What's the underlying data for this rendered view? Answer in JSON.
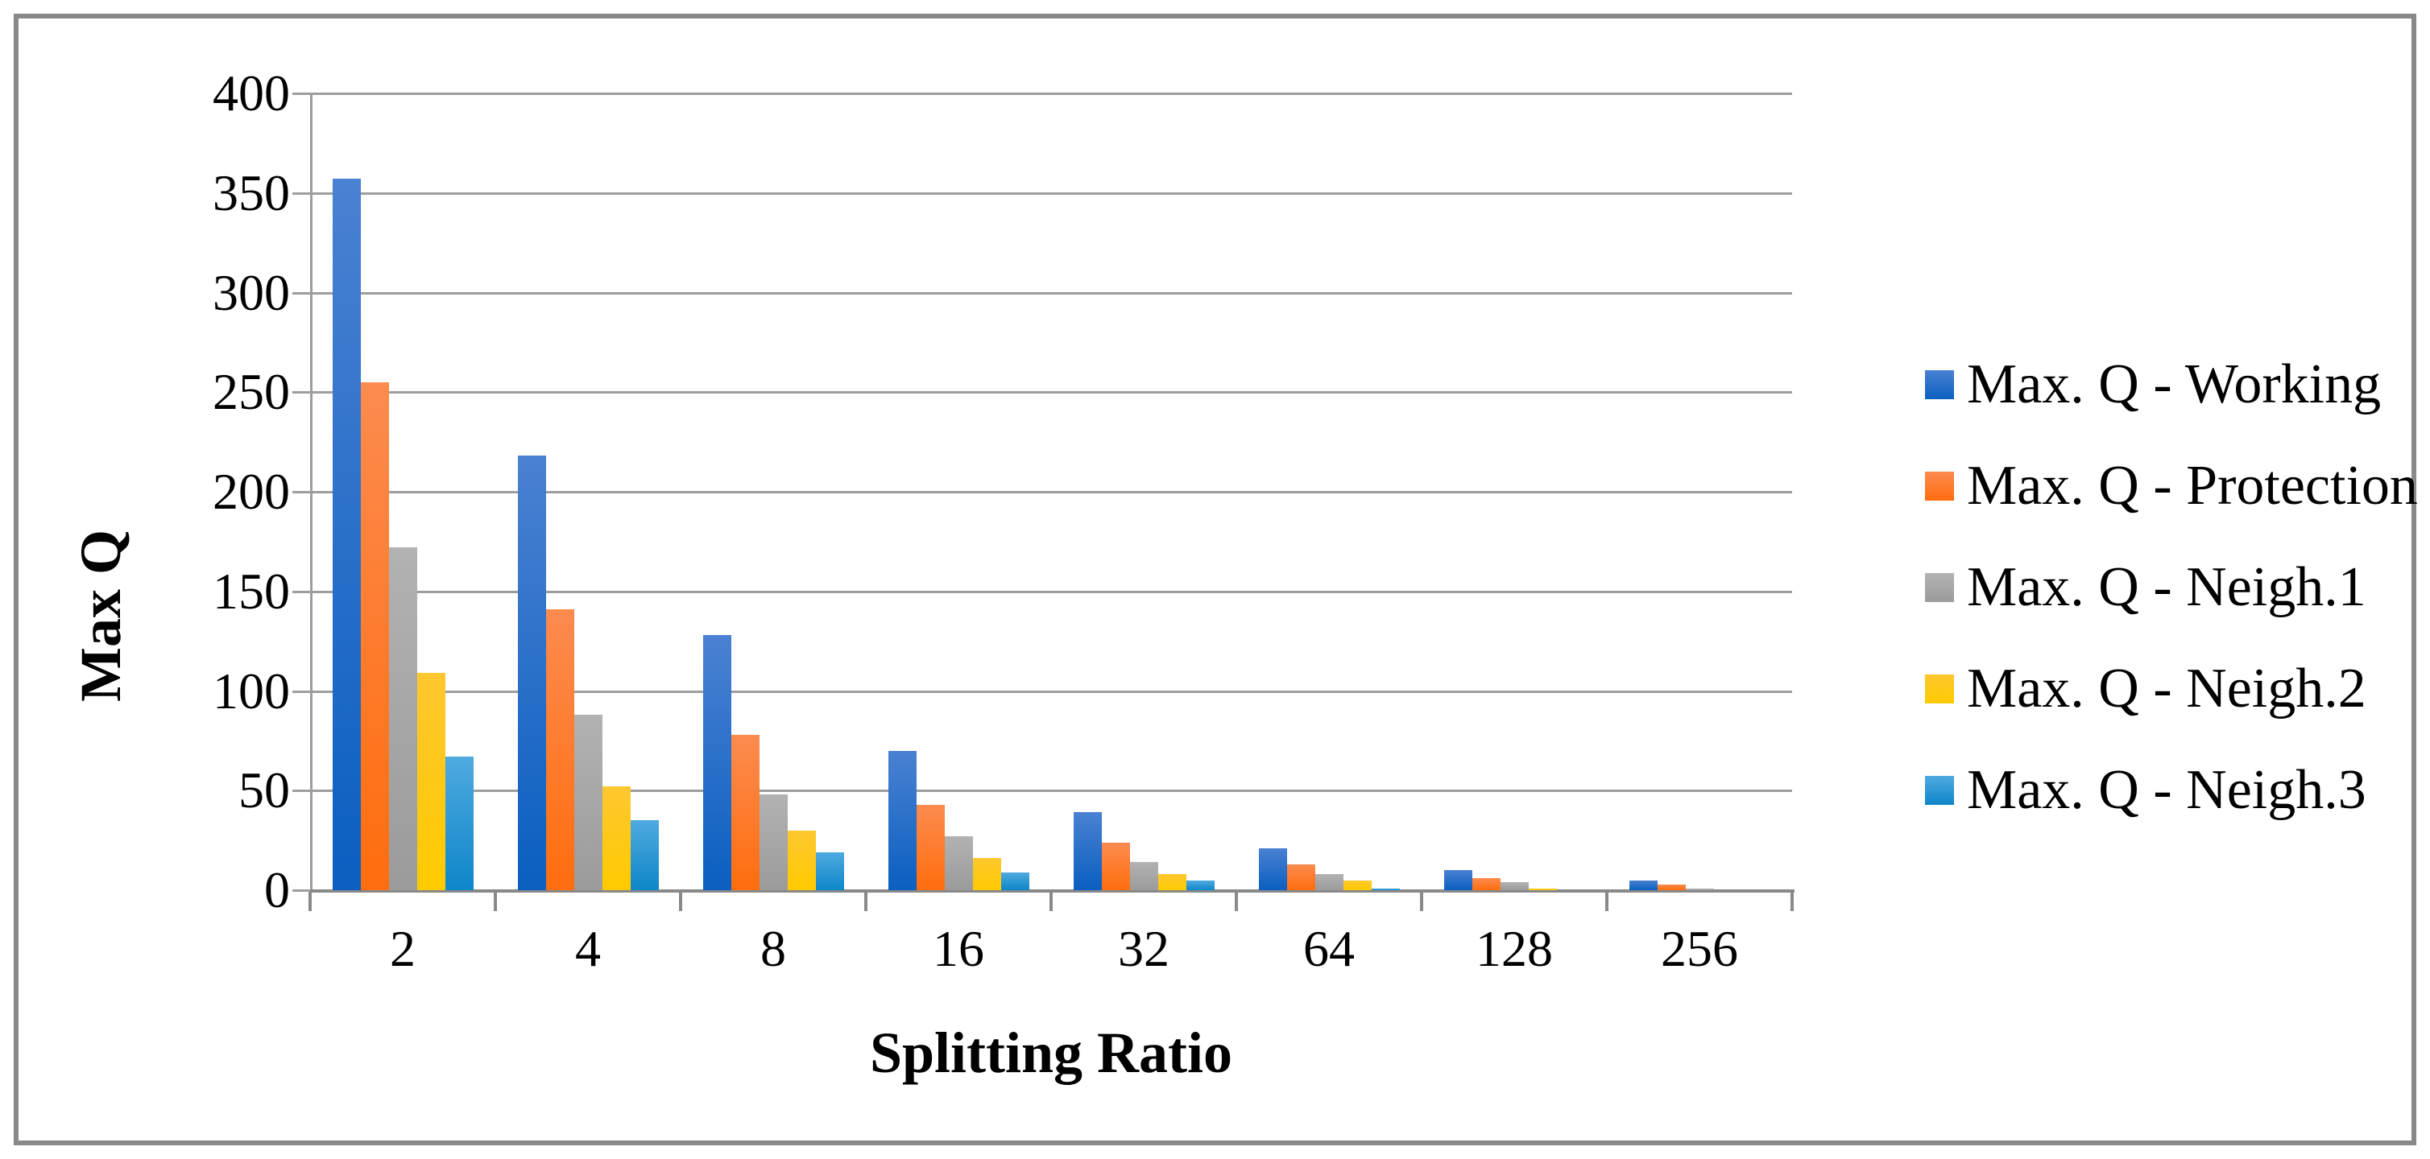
{
  "figure": {
    "background": "#ffffff",
    "frame_color": "#898989",
    "gridline_color": "#9d9d9d",
    "axis_line_color": "#898989",
    "text_color": "#000000"
  },
  "chart_data": {
    "type": "bar",
    "title": "",
    "xlabel": "Splitting Ratio",
    "ylabel": "Max Q",
    "categories": [
      "2",
      "4",
      "8",
      "16",
      "32",
      "64",
      "128",
      "256"
    ],
    "y_ticks": [
      0,
      50,
      100,
      150,
      200,
      250,
      300,
      350,
      400
    ],
    "ylim": [
      0,
      400
    ],
    "grid": true,
    "legend_position": "right",
    "series": [
      {
        "name": "Max. Q - Working",
        "color_top": "#4a81d2",
        "color_bottom": "#0a5fc0",
        "values": [
          357,
          218,
          128,
          70,
          39,
          21,
          10,
          5
        ]
      },
      {
        "name": "Max. Q - Protection",
        "color_top": "#fc8b4f",
        "color_bottom": "#ff6d0e",
        "values": [
          255,
          141,
          78,
          43,
          24,
          13,
          6,
          3
        ]
      },
      {
        "name": "Max. Q - Neigh.1",
        "color_top": "#b2b2b2",
        "color_bottom": "#9b9b9b",
        "values": [
          172,
          88,
          48,
          27,
          14,
          8,
          4,
          1
        ]
      },
      {
        "name": "Max. Q - Neigh.2",
        "color_top": "#fec72f",
        "color_bottom": "#ffca00",
        "values": [
          109,
          52,
          30,
          16,
          8,
          5,
          1,
          0
        ]
      },
      {
        "name": "Max. Q - Neigh.3",
        "color_top": "#4faadf",
        "color_bottom": "#0e86c9",
        "values": [
          67,
          35,
          19,
          9,
          5,
          1,
          0,
          0
        ]
      }
    ]
  }
}
